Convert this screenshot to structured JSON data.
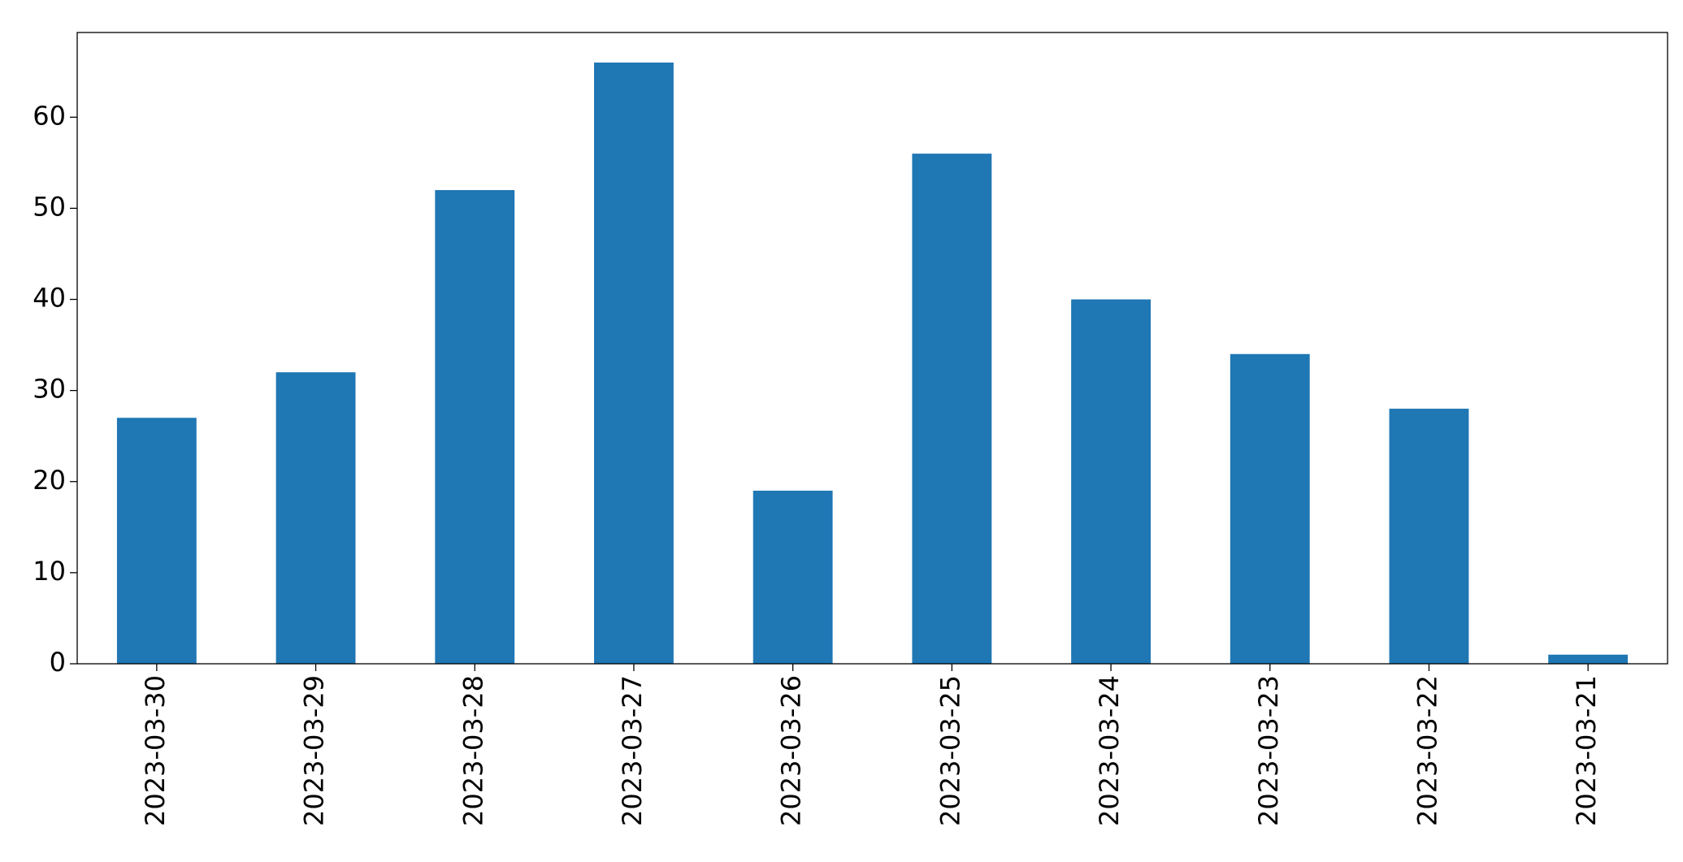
{
  "chart_data": {
    "type": "bar",
    "categories": [
      "2023-03-30",
      "2023-03-29",
      "2023-03-28",
      "2023-03-27",
      "2023-03-26",
      "2023-03-25",
      "2023-03-24",
      "2023-03-23",
      "2023-03-22",
      "2023-03-21"
    ],
    "values": [
      27,
      32,
      52,
      66,
      19,
      56,
      40,
      34,
      28,
      1
    ],
    "color": "#1f77b4",
    "ylim": [
      0,
      69.3
    ],
    "yticks": [
      0,
      10,
      20,
      30,
      40,
      50,
      60
    ],
    "grid": false
  }
}
